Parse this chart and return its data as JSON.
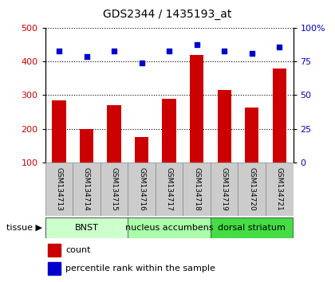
{
  "title": "GDS2344 / 1435193_at",
  "samples": [
    "GSM134713",
    "GSM134714",
    "GSM134715",
    "GSM134716",
    "GSM134717",
    "GSM134718",
    "GSM134719",
    "GSM134720",
    "GSM134721"
  ],
  "counts": [
    285,
    200,
    270,
    175,
    290,
    420,
    315,
    262,
    380
  ],
  "percentiles": [
    83,
    79,
    83,
    74,
    83,
    88,
    83,
    81,
    86
  ],
  "ylim_left": [
    100,
    500
  ],
  "ylim_right": [
    0,
    100
  ],
  "yticks_left": [
    100,
    200,
    300,
    400,
    500
  ],
  "yticks_right": [
    0,
    25,
    50,
    75,
    100
  ],
  "ytick_labels_right": [
    "0",
    "25",
    "50",
    "75",
    "100%"
  ],
  "tissue_groups": [
    {
      "label": "BNST",
      "start": 0,
      "end": 3,
      "color": "#ccffcc"
    },
    {
      "label": "nucleus accumbens",
      "start": 3,
      "end": 6,
      "color": "#aaffaa"
    },
    {
      "label": "dorsal striatum",
      "start": 6,
      "end": 9,
      "color": "#44dd44"
    }
  ],
  "bar_color": "#cc0000",
  "dot_color": "#0000cc",
  "grid_color": "#000000",
  "sample_bg": "#cccccc",
  "bar_width": 0.5,
  "left_tick_color": "#cc0000",
  "right_tick_color": "#0000cc",
  "title_fontsize": 10,
  "tick_fontsize": 8,
  "sample_fontsize": 6.5,
  "tissue_fontsize": 8,
  "legend_fontsize": 8
}
